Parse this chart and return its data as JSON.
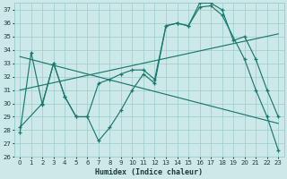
{
  "bg_color": "#cce8e8",
  "line_color": "#1a7a6e",
  "grid_color": "#99cccc",
  "xlim": [
    -0.5,
    23.5
  ],
  "ylim": [
    26,
    37.5
  ],
  "yticks": [
    26,
    27,
    28,
    29,
    30,
    31,
    32,
    33,
    34,
    35,
    36,
    37
  ],
  "xticks": [
    0,
    1,
    2,
    3,
    4,
    5,
    6,
    7,
    8,
    9,
    10,
    11,
    12,
    13,
    14,
    15,
    16,
    17,
    18,
    19,
    20,
    21,
    22,
    23
  ],
  "xlabel": "Humidex (Indice chaleur)",
  "series": [
    {
      "x": [
        0,
        1,
        2,
        3,
        4,
        5,
        6,
        7,
        8,
        9,
        10,
        11,
        12,
        13,
        14,
        15,
        16,
        17,
        18,
        20,
        21,
        22,
        23
      ],
      "y": [
        27.8,
        33.8,
        29.9,
        33.0,
        30.5,
        29.0,
        29.0,
        27.2,
        28.2,
        29.5,
        31.0,
        32.2,
        31.5,
        35.8,
        36.0,
        35.8,
        37.2,
        37.3,
        36.6,
        33.3,
        31.0,
        29.0,
        26.5
      ],
      "marker": true
    },
    {
      "x": [
        0,
        2,
        3,
        4,
        5,
        6,
        7,
        8,
        9,
        10,
        11,
        12,
        13,
        14,
        15,
        16,
        17,
        18,
        19,
        20,
        21,
        22,
        23
      ],
      "y": [
        28.2,
        30.0,
        33.0,
        30.5,
        29.0,
        29.0,
        31.5,
        31.8,
        32.2,
        32.5,
        32.5,
        31.8,
        35.8,
        36.0,
        35.8,
        37.5,
        37.5,
        37.0,
        34.7,
        35.0,
        33.3,
        31.0,
        29.0
      ],
      "marker": true
    },
    {
      "x": [
        0,
        23
      ],
      "y": [
        33.5,
        28.5
      ],
      "marker": false
    },
    {
      "x": [
        0,
        23
      ],
      "y": [
        31.0,
        35.2
      ],
      "marker": false
    }
  ]
}
